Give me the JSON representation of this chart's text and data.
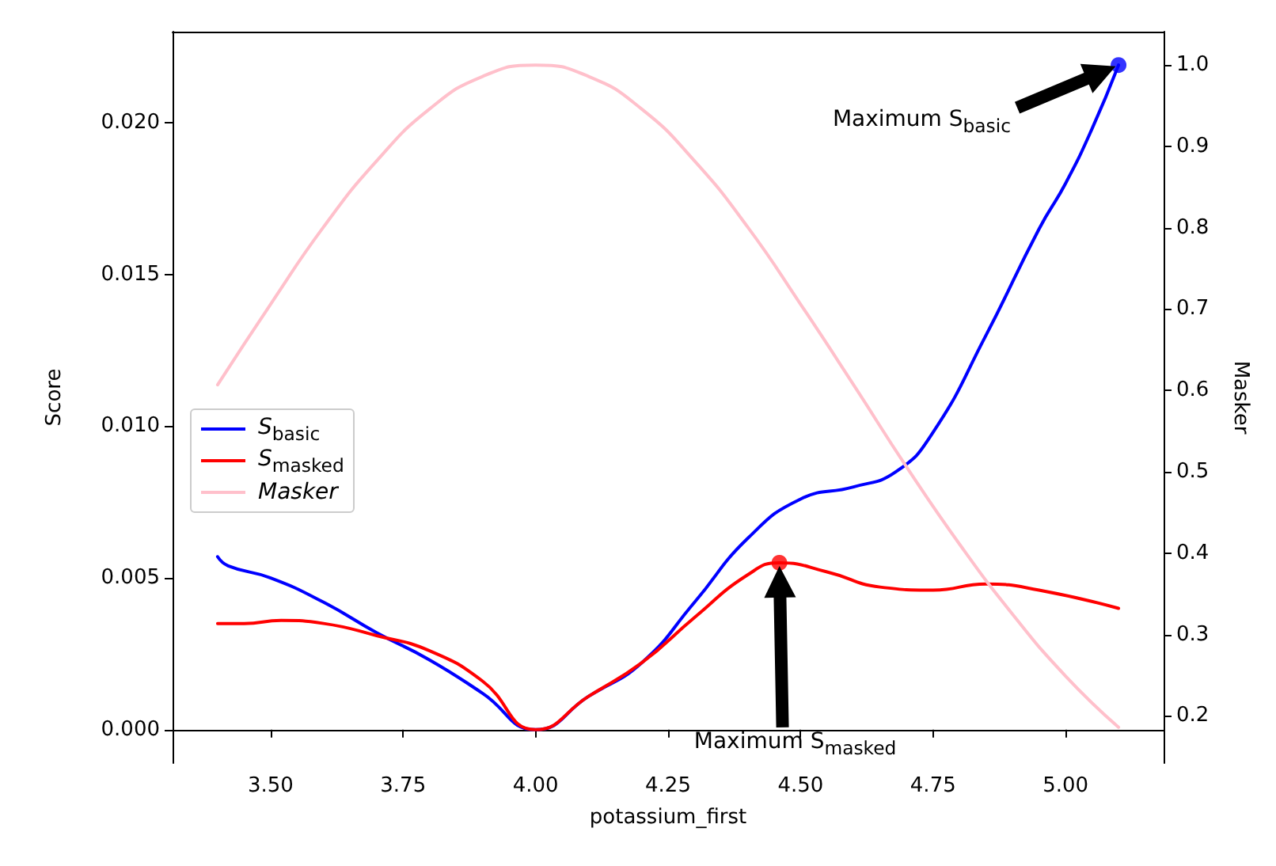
{
  "chart_data": {
    "type": "line",
    "xlabel": "potassium_first",
    "ylabel": "Score",
    "y2label": "Masker",
    "xlim": [
      3.315,
      5.185
    ],
    "xticks": [
      {
        "value": 3.5,
        "label": "3.50"
      },
      {
        "value": 3.75,
        "label": "3.75"
      },
      {
        "value": 4.0,
        "label": "4.00"
      },
      {
        "value": 4.25,
        "label": "4.25"
      },
      {
        "value": 4.5,
        "label": "4.50"
      },
      {
        "value": 4.75,
        "label": "4.75"
      },
      {
        "value": 5.0,
        "label": "5.00"
      }
    ],
    "ylim": [
      -0.0011,
      0.023
    ],
    "yticks": [
      {
        "value": 0,
        "label": "0.000"
      },
      {
        "value": 0.005,
        "label": "0.005"
      },
      {
        "value": 0.01,
        "label": "0.010"
      },
      {
        "value": 0.015,
        "label": "0.015"
      },
      {
        "value": 0.02,
        "label": "0.020"
      }
    ],
    "y2lim": [
      0.142,
      1.041
    ],
    "y2ticks": [
      0.2,
      0.3,
      0.4,
      0.5,
      0.6,
      0.7,
      0.8,
      0.9,
      {
        "value": 1.0,
        "label": "1.0"
      }
    ],
    "legend": "left",
    "series": [
      {
        "name": "S$_{basic}$",
        "color": "#0000ff",
        "x": [
          3.4,
          3.42,
          3.5,
          3.6,
          3.7,
          3.8,
          3.9,
          4.0,
          4.1,
          4.2,
          4.3,
          4.4,
          4.5,
          4.6,
          4.68,
          4.75,
          4.85,
          4.95,
          5.0,
          5.05,
          5.1
        ],
        "values": [
          0.0057,
          0.0054,
          0.005,
          0.0042,
          0.0032,
          0.0023,
          0.0012,
          0.0,
          0.0011,
          0.0022,
          0.0042,
          0.0063,
          0.0076,
          0.008,
          0.0085,
          0.0098,
          0.013,
          0.0165,
          0.018,
          0.0198,
          0.0219
        ]
      },
      {
        "name": "S$_{masked}$",
        "color": "#ff0000",
        "x": [
          3.4,
          3.45,
          3.52,
          3.6,
          3.7,
          3.8,
          3.9,
          4.0,
          4.1,
          4.2,
          4.3,
          4.4,
          4.46,
          4.55,
          4.65,
          4.75,
          4.85,
          4.95,
          5.1
        ],
        "values": [
          0.0035,
          0.0035,
          0.0036,
          0.0035,
          0.0031,
          0.0026,
          0.0016,
          0.0,
          0.0011,
          0.0022,
          0.0037,
          0.0051,
          0.0055,
          0.0052,
          0.0047,
          0.0046,
          0.0048,
          0.0046,
          0.004
        ]
      },
      {
        "name": "Masker",
        "color": "#ffc0cb",
        "axis": "y2",
        "x": [
          3.4,
          3.5,
          3.6,
          3.7,
          3.8,
          3.9,
          4.0,
          4.1,
          4.2,
          4.3,
          4.4,
          4.5,
          4.6,
          4.7,
          4.8,
          4.9,
          5.0,
          5.1
        ],
        "values": [
          0.607,
          0.706,
          0.801,
          0.882,
          0.946,
          0.986,
          1.0,
          0.986,
          0.946,
          0.882,
          0.801,
          0.706,
          0.607,
          0.506,
          0.411,
          0.325,
          0.249,
          0.186
        ]
      },
      {
        "type": "scatter",
        "marker": "circle",
        "color": "#0000ff",
        "x": [
          5.1
        ],
        "values": [
          0.0219
        ]
      },
      {
        "type": "scatter",
        "marker": "circle",
        "color": "#ff0000",
        "x": [
          4.46
        ],
        "values": [
          0.0055
        ]
      }
    ],
    "annotations": [
      "Maximum S$_{basic}$",
      "Maximum S$_{masked}$"
    ]
  }
}
